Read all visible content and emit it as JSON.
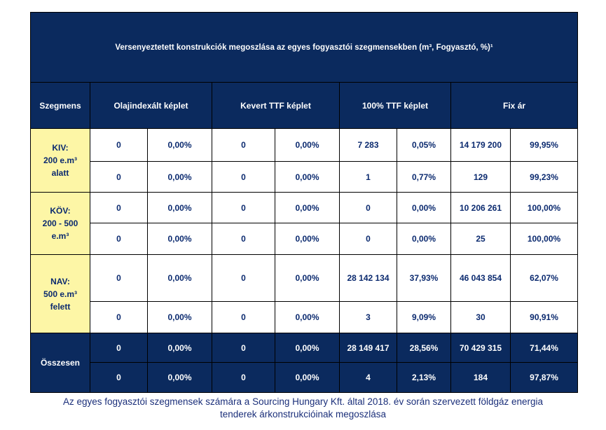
{
  "chart_data": {
    "type": "table",
    "title": "Versenyeztetett konstrukciók megoszlása az egyes fogyasztói szegmensekben (m³, Fogyasztó, %)¹",
    "columns": [
      "Szegmens",
      "Olajindexált képlet",
      "Kevert TTF képlet",
      "100% TTF képlet",
      "Fix ár"
    ],
    "segments": [
      {
        "label_lines": [
          "KIV:",
          "200 e.m³",
          "alatt"
        ],
        "rows": [
          [
            "0",
            "0,00%",
            "0",
            "0,00%",
            "7 283",
            "0,05%",
            "14 179 200",
            "99,95%"
          ],
          [
            "0",
            "0,00%",
            "0",
            "0,00%",
            "1",
            "0,77%",
            "129",
            "99,23%"
          ]
        ]
      },
      {
        "label_lines": [
          "KÖV:",
          "200 - 500",
          "e.m³"
        ],
        "rows": [
          [
            "0",
            "0,00%",
            "0",
            "0,00%",
            "0",
            "0,00%",
            "10 206 261",
            "100,00%"
          ],
          [
            "0",
            "0,00%",
            "0",
            "0,00%",
            "0",
            "0,00%",
            "25",
            "100,00%"
          ]
        ]
      },
      {
        "label_lines": [
          "NAV:",
          "500 e.m³",
          "felett"
        ],
        "rows": [
          [
            "0",
            "0,00%",
            "0",
            "0,00%",
            "28 142 134",
            "37,93%",
            "46 043 854",
            "62,07%"
          ],
          [
            "0",
            "0,00%",
            "0",
            "0,00%",
            "3",
            "9,09%",
            "30",
            "90,91%"
          ]
        ]
      }
    ],
    "total": {
      "label": "Összesen",
      "rows": [
        [
          "0",
          "0,00%",
          "0",
          "0,00%",
          "28 149 417",
          "28,56%",
          "70 429 315",
          "71,44%"
        ],
        [
          "0",
          "0,00%",
          "0",
          "0,00%",
          "4",
          "2,13%",
          "184",
          "97,87%"
        ]
      ]
    }
  },
  "caption": {
    "line1": "Az egyes fogyasztói szegmensek számára a Sourcing Hungary Kft. által 2018. év során szervezett földgáz energia",
    "line2": "tenderek árkonstrukcióinak megoszlása"
  },
  "colors": {
    "header_bg": "#0b2a5e",
    "header_text": "#ffffff",
    "segment_bg": "#fdf6a6",
    "value_text": "#0b2a6f",
    "caption_text": "#1b2f7a"
  }
}
